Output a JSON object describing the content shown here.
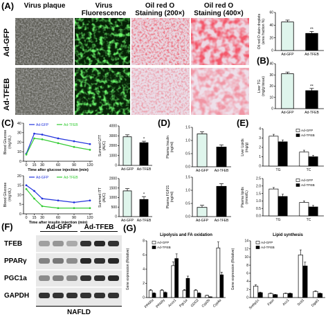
{
  "panelA": {
    "label": "(A)",
    "columns": [
      "Virus plaque",
      "Virus\nFluorescence",
      "Oil red O\nStaining (200×)",
      "Oil red O\nStaining (400×)"
    ],
    "rows": [
      "Ad-GFP",
      "Ad-TFEB"
    ]
  },
  "panelB": {
    "label": "(B)"
  },
  "panelC": {
    "label": "(C)"
  },
  "panelD": {
    "label": "(D)"
  },
  "panelE": {
    "label": "(E)"
  },
  "panelF": {
    "label": "(F)",
    "groups": [
      "Ad-GFP",
      "Ad-TFEB"
    ],
    "proteins": [
      "TFEB",
      "PPARγ",
      "PGC1a",
      "GAPDH"
    ],
    "footer": "NAFLD"
  },
  "panelG": {
    "label": "(G)"
  },
  "chart_data": [
    {
      "id": "A-bar",
      "type": "bar",
      "categories": [
        "Ad-GFP",
        "Ad-TFEB"
      ],
      "values": [
        45,
        27
      ],
      "errors": [
        3,
        3
      ],
      "ylabel": "Oil red O stain droplets\n(area fraction %)",
      "ylim": [
        0,
        60
      ],
      "yticks": [
        "0",
        "20",
        "40",
        "60"
      ],
      "sig": [
        "",
        "**"
      ],
      "colors": [
        "#dff5ec",
        "#000000"
      ]
    },
    {
      "id": "B-bar",
      "type": "bar",
      "categories": [
        "Ad-GFP",
        "Ad-TFEB"
      ],
      "values": [
        31,
        16
      ],
      "errors": [
        1.5,
        2
      ],
      "ylabel": "Liver TG\n(mg/g tissue)",
      "ylim": [
        0,
        40
      ],
      "yticks": [
        "0",
        "10",
        "20",
        "30",
        "40"
      ],
      "sig": [
        "",
        "**"
      ],
      "colors": [
        "#dff5ec",
        "#000000"
      ]
    },
    {
      "id": "C-gtt",
      "type": "line",
      "x": [
        0,
        15,
        30,
        60,
        90,
        120
      ],
      "xticks": [
        "0",
        "15",
        "30",
        "60",
        "90",
        "120"
      ],
      "xlabel": "Time after glucose injection (min)",
      "ylabel": "Blood Glucose\n(mg/dL)",
      "ylim": [
        0,
        40
      ],
      "yticks": [
        "0",
        "10",
        "20",
        "30",
        "40"
      ],
      "series": [
        {
          "name": "Ad-GFP",
          "color": "#2233dd",
          "values": [
            8,
            29,
            28,
            24,
            21,
            18
          ]
        },
        {
          "name": "Ad-TFEB",
          "color": "#33cc33",
          "values": [
            7,
            24,
            23,
            19,
            15,
            12
          ]
        }
      ]
    },
    {
      "id": "C-gttauc",
      "type": "bar",
      "categories": [
        "Ad-GFP",
        "Ad-TFEB"
      ],
      "values": [
        2900,
        2300
      ],
      "errors": [
        200,
        150
      ],
      "ylabel": "Summed GTT\n(AUC)",
      "ylim": [
        0,
        4000
      ],
      "yticks": [
        "0",
        "1000",
        "2000",
        "3000",
        "4000"
      ],
      "sig": [
        "",
        "*"
      ],
      "colors": [
        "#dff5ec",
        "#000000"
      ]
    },
    {
      "id": "C-itt",
      "type": "line",
      "x": [
        0,
        15,
        30,
        60,
        90,
        120
      ],
      "xticks": [
        "0",
        "15",
        "30",
        "60",
        "90",
        "120"
      ],
      "xlabel": "Time after insulin injection (min)",
      "ylabel": "Blood Glucose\n(mg/dL)",
      "ylim": [
        0,
        20
      ],
      "yticks": [
        "0",
        "5",
        "10",
        "15",
        "20"
      ],
      "series": [
        {
          "name": "Ad-GFP",
          "color": "#2233dd",
          "values": [
            15,
            12,
            8,
            7,
            6,
            7
          ]
        },
        {
          "name": "Ad-TFEB",
          "color": "#33cc33",
          "values": [
            13,
            8,
            4,
            3,
            3,
            3
          ]
        }
      ]
    },
    {
      "id": "C-ittauc",
      "type": "bar",
      "categories": [
        "Ad-GFP",
        "Ad-TFEB"
      ],
      "values": [
        1350,
        900
      ],
      "errors": [
        120,
        150
      ],
      "ylabel": "Summed ITT\n(AUC)",
      "ylim": [
        0,
        2000
      ],
      "yticks": [
        "0",
        "500",
        "1000",
        "1500",
        "2000"
      ],
      "sig": [
        "",
        "*"
      ],
      "colors": [
        "#dff5ec",
        "#000000"
      ]
    },
    {
      "id": "D-insulin",
      "type": "bar",
      "categories": [
        "Ad-GFP",
        "Ad-TFEB"
      ],
      "values": [
        1.25,
        0.75
      ],
      "errors": [
        0.08,
        0.08
      ],
      "ylabel": "Plasma Insulin\n(ng/ml)",
      "ylim": [
        0,
        1.5
      ],
      "yticks": [
        "0.0",
        "0.5",
        "1.0",
        "1.5"
      ],
      "sig": [
        "",
        ""
      ],
      "colors": [
        "#dff5ec",
        "#000000"
      ]
    },
    {
      "id": "D-fgf21",
      "type": "bar",
      "categories": [
        "Ad-GFP",
        "Ad-TFEB"
      ],
      "values": [
        0.35,
        1.15
      ],
      "errors": [
        0.08,
        0.1
      ],
      "ylabel": "Plasma FGF21\n(ng/ml)",
      "ylim": [
        0,
        1.5
      ],
      "yticks": [
        "0.0",
        "0.5",
        "1.0",
        "1.5"
      ],
      "sig": [
        "",
        ""
      ],
      "colors": [
        "#dff5ec",
        "#000000"
      ]
    },
    {
      "id": "E-liver",
      "type": "bar",
      "categories": [
        "TG",
        "TC"
      ],
      "ylabel": "Liver Lipids\n(mg/g)",
      "ylim": [
        0,
        4
      ],
      "yticks": [
        "0",
        "1",
        "2",
        "3",
        "4"
      ],
      "series": [
        {
          "name": "Ad-GFP",
          "color": "#ffffff",
          "values": [
            3.2,
            1.5
          ],
          "errors": [
            0.2,
            0.2
          ]
        },
        {
          "name": "Ad-TFEB",
          "color": "#000000",
          "values": [
            2.6,
            1.0
          ],
          "errors": [
            0.2,
            0.15
          ]
        }
      ]
    },
    {
      "id": "E-plasma",
      "type": "bar",
      "categories": [
        "TG",
        "TC"
      ],
      "ylabel": "Plasma lipids\n(mmol/L)",
      "ylim": [
        0,
        2.5
      ],
      "yticks": [
        "0.0",
        "0.5",
        "1.0",
        "1.5",
        "2.0",
        "2.5"
      ],
      "series": [
        {
          "name": "Ad-GFP",
          "color": "#ffffff",
          "values": [
            1.8,
            0.9
          ],
          "errors": [
            0.1,
            0.1
          ]
        },
        {
          "name": "Ad-TFEB",
          "color": "#000000",
          "values": [
            1.3,
            0.6
          ],
          "errors": [
            0.15,
            0.1
          ]
        }
      ]
    },
    {
      "id": "G-fa",
      "type": "bar",
      "title": "Lipolysis and FA oxidation",
      "categories": [
        "PPARα",
        "PPARγ",
        "Acox1",
        "Pgc1a",
        "GDD2",
        "Cyp2b",
        "Cyp4a"
      ],
      "ylabel": "Gene expression (Relative)",
      "ylim": [
        0,
        8
      ],
      "yticks": [
        "0",
        "2",
        "4",
        "6",
        "8"
      ],
      "series": [
        {
          "name": "Ad-GFP",
          "color": "#ffffff",
          "values": [
            1,
            1,
            4.5,
            1,
            1,
            0.3,
            7
          ]
        },
        {
          "name": "Ad-TFEB",
          "color": "#000000",
          "values": [
            0.6,
            0.7,
            5.5,
            2.7,
            0.6,
            0.1,
            3.2
          ]
        }
      ]
    },
    {
      "id": "G-ls",
      "type": "bar",
      "title": "Lipid synthesis",
      "categories": [
        "Srebp1c",
        "Fasn",
        "Acc1",
        "Scd1",
        "Dgat1"
      ],
      "ylabel": "Gene expression (Relative)",
      "ylim": [
        0,
        14
      ],
      "yticks": [
        "0",
        "2",
        "4",
        "6",
        "8",
        "10",
        "12",
        "14"
      ],
      "series": [
        {
          "name": "Ad-GFP",
          "color": "#ffffff",
          "values": [
            2.8,
            1.0,
            1.0,
            10.5,
            1.5
          ]
        },
        {
          "name": "Ad-TFEB",
          "color": "#000000",
          "values": [
            1.2,
            0.7,
            1.0,
            7.8,
            1.0
          ]
        }
      ]
    }
  ]
}
